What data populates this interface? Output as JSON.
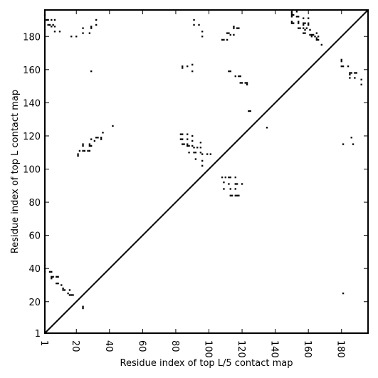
{
  "chart_data": {
    "type": "heatmap",
    "title": "",
    "xlabel": "Residue index of top L/5 contact map",
    "ylabel": "Residue index of top L contact map",
    "xlim": [
      1,
      196
    ],
    "ylim": [
      1,
      196
    ],
    "x_ticks": [
      1,
      20,
      40,
      60,
      80,
      100,
      120,
      140,
      160,
      180
    ],
    "y_ticks": [
      1,
      20,
      40,
      60,
      80,
      100,
      120,
      140,
      160,
      180
    ],
    "diagonal": true,
    "color": "#000000",
    "upper_contacts": [
      [
        1,
        193
      ],
      [
        2,
        190
      ],
      [
        3,
        190
      ],
      [
        5,
        190
      ],
      [
        7,
        190
      ],
      [
        3,
        187
      ],
      [
        4,
        187
      ],
      [
        5,
        186
      ],
      [
        6,
        187
      ],
      [
        7,
        186
      ],
      [
        7,
        183
      ],
      [
        10,
        183
      ],
      [
        17,
        180
      ],
      [
        20,
        180
      ],
      [
        24,
        185
      ],
      [
        24,
        182
      ],
      [
        29,
        186
      ],
      [
        29,
        185
      ],
      [
        28,
        182
      ],
      [
        32,
        190
      ],
      [
        32,
        187
      ],
      [
        29,
        159
      ],
      [
        42,
        126
      ],
      [
        36,
        122
      ],
      [
        35,
        119
      ],
      [
        35,
        118
      ],
      [
        33,
        119
      ],
      [
        32,
        119
      ],
      [
        31,
        117
      ],
      [
        29,
        118
      ],
      [
        28,
        115
      ],
      [
        28,
        114
      ],
      [
        29,
        114
      ],
      [
        27,
        111
      ],
      [
        28,
        111
      ],
      [
        25,
        111
      ],
      [
        24,
        111
      ],
      [
        24,
        114
      ],
      [
        24,
        115
      ],
      [
        22,
        111
      ],
      [
        21,
        109
      ],
      [
        21,
        108
      ],
      [
        83,
        121
      ],
      [
        84,
        121
      ],
      [
        83,
        118
      ],
      [
        84,
        118
      ],
      [
        84,
        115
      ],
      [
        85,
        115
      ],
      [
        87,
        121
      ],
      [
        87,
        118
      ],
      [
        87,
        115
      ],
      [
        87,
        114
      ],
      [
        88,
        114
      ],
      [
        88,
        110
      ],
      [
        90,
        120
      ],
      [
        90,
        117
      ],
      [
        90,
        114
      ],
      [
        91,
        113
      ],
      [
        91,
        110
      ],
      [
        92,
        110
      ],
      [
        92,
        106
      ],
      [
        93,
        113
      ],
      [
        95,
        116
      ],
      [
        95,
        113
      ],
      [
        95,
        110
      ],
      [
        96,
        109
      ],
      [
        96,
        105
      ],
      [
        96,
        102
      ],
      [
        99,
        109
      ],
      [
        101,
        109
      ],
      [
        108,
        95
      ],
      [
        110,
        95
      ],
      [
        109,
        92
      ],
      [
        109,
        88
      ],
      [
        112,
        95
      ],
      [
        113,
        95
      ],
      [
        112,
        91
      ],
      [
        113,
        88
      ],
      [
        113,
        84
      ],
      [
        114,
        84
      ],
      [
        116,
        95
      ],
      [
        116,
        91
      ],
      [
        117,
        91
      ],
      [
        116,
        88
      ],
      [
        116,
        84
      ],
      [
        117,
        84
      ],
      [
        118,
        84
      ],
      [
        120,
        91
      ],
      [
        84,
        161
      ],
      [
        84,
        162
      ],
      [
        87,
        162
      ],
      [
        90,
        163
      ],
      [
        90,
        159
      ],
      [
        91,
        190
      ],
      [
        91,
        187
      ],
      [
        94,
        187
      ],
      [
        96,
        183
      ],
      [
        96,
        180
      ],
      [
        108,
        178
      ],
      [
        109,
        178
      ],
      [
        111,
        182
      ],
      [
        112,
        182
      ],
      [
        113,
        181
      ],
      [
        111,
        178
      ],
      [
        115,
        186
      ],
      [
        115,
        185
      ],
      [
        115,
        181
      ],
      [
        117,
        185
      ],
      [
        118,
        185
      ],
      [
        112,
        159
      ],
      [
        113,
        159
      ],
      [
        116,
        156
      ],
      [
        118,
        156
      ],
      [
        119,
        156
      ],
      [
        119,
        152
      ],
      [
        120,
        152
      ],
      [
        122,
        152
      ],
      [
        123,
        152
      ],
      [
        123,
        151
      ],
      [
        124,
        135
      ],
      [
        125,
        135
      ],
      [
        135,
        125
      ],
      [
        150,
        195
      ],
      [
        150,
        194
      ],
      [
        150,
        193
      ],
      [
        151,
        193
      ],
      [
        150,
        192
      ],
      [
        150,
        189
      ],
      [
        150,
        188
      ],
      [
        151,
        188
      ],
      [
        153,
        195
      ],
      [
        153,
        192
      ],
      [
        154,
        192
      ],
      [
        154,
        189
      ],
      [
        154,
        188
      ],
      [
        154,
        185
      ],
      [
        155,
        185
      ],
      [
        157,
        191
      ],
      [
        157,
        188
      ],
      [
        157,
        187
      ],
      [
        158,
        188
      ],
      [
        157,
        185
      ],
      [
        157,
        182
      ],
      [
        158,
        182
      ],
      [
        158,
        184
      ],
      [
        159,
        185
      ],
      [
        160,
        191
      ],
      [
        160,
        188
      ],
      [
        160,
        187
      ],
      [
        161,
        184
      ],
      [
        161,
        181
      ],
      [
        162,
        181
      ],
      [
        162,
        180
      ],
      [
        163,
        181
      ],
      [
        164,
        180
      ],
      [
        165,
        182
      ],
      [
        165,
        179
      ],
      [
        165,
        178
      ],
      [
        166,
        178
      ],
      [
        166,
        180
      ],
      [
        168,
        175
      ],
      [
        180,
        166
      ],
      [
        180,
        165
      ],
      [
        180,
        162
      ],
      [
        181,
        162
      ],
      [
        181,
        115
      ],
      [
        184,
        162
      ],
      [
        185,
        158
      ],
      [
        185,
        157
      ],
      [
        186,
        158
      ],
      [
        185,
        155
      ],
      [
        186,
        119
      ],
      [
        187,
        115
      ],
      [
        188,
        155
      ],
      [
        188,
        158
      ],
      [
        189,
        158
      ],
      [
        192,
        154
      ],
      [
        192,
        151
      ]
    ],
    "lower_contacts": [
      [
        1,
        42
      ],
      [
        1,
        40
      ],
      [
        1,
        38
      ],
      [
        4,
        38
      ],
      [
        5,
        38
      ],
      [
        5,
        35
      ],
      [
        6,
        35
      ],
      [
        5,
        34
      ],
      [
        8,
        35
      ],
      [
        9,
        35
      ],
      [
        8,
        31
      ],
      [
        9,
        31
      ],
      [
        11,
        30
      ],
      [
        12,
        28
      ],
      [
        12,
        27
      ],
      [
        13,
        27
      ],
      [
        16,
        27
      ],
      [
        15,
        25
      ],
      [
        16,
        24
      ],
      [
        17,
        24
      ],
      [
        18,
        24
      ],
      [
        24,
        17
      ],
      [
        24,
        16
      ],
      [
        181,
        25
      ]
    ]
  }
}
